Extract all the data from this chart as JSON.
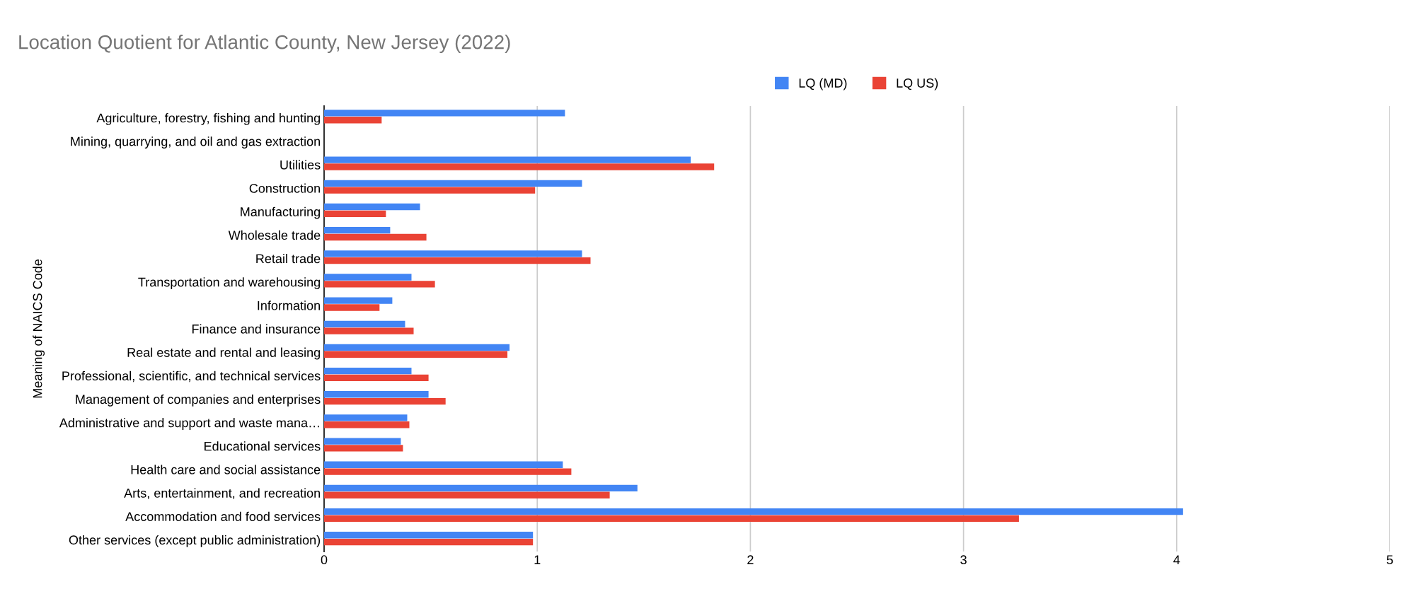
{
  "chart_data": {
    "type": "bar",
    "orientation": "horizontal",
    "title": "Location Quotient for Atlantic County, New Jersey (2022)",
    "ylabel": "Meaning of NAICS Code",
    "categories": [
      "Agriculture, forestry, fishing and hunting",
      "Mining, quarrying, and oil and gas extraction",
      "Utilities",
      "Construction",
      "Manufacturing",
      "Wholesale trade",
      "Retail trade",
      "Transportation and warehousing",
      "Information",
      "Finance and insurance",
      "Real estate and rental and leasing",
      "Professional, scientific, and technical services",
      "Management of companies and enterprises",
      "Administrative and support and waste mana…",
      "Educational services",
      "Health care and social assistance",
      "Arts, entertainment, and recreation",
      "Accommodation and food services",
      "Other services (except public administration)"
    ],
    "series": [
      {
        "name": "LQ (MD)",
        "color": "#4285f4",
        "values": [
          1.13,
          null,
          1.72,
          1.21,
          0.45,
          0.31,
          1.21,
          0.41,
          0.32,
          0.38,
          0.87,
          0.41,
          0.49,
          0.39,
          0.36,
          1.12,
          1.47,
          4.03,
          0.98
        ]
      },
      {
        "name": "LQ US)",
        "color": "#ea4335",
        "values": [
          0.27,
          null,
          1.83,
          0.99,
          0.29,
          0.48,
          1.25,
          0.52,
          0.26,
          0.42,
          0.86,
          0.49,
          0.57,
          0.4,
          0.37,
          1.16,
          1.34,
          3.26,
          0.98
        ]
      }
    ],
    "xlim": [
      0,
      5
    ],
    "xticks": [
      0,
      1,
      2,
      3,
      4,
      5
    ],
    "grid": "x",
    "legend": "top"
  }
}
